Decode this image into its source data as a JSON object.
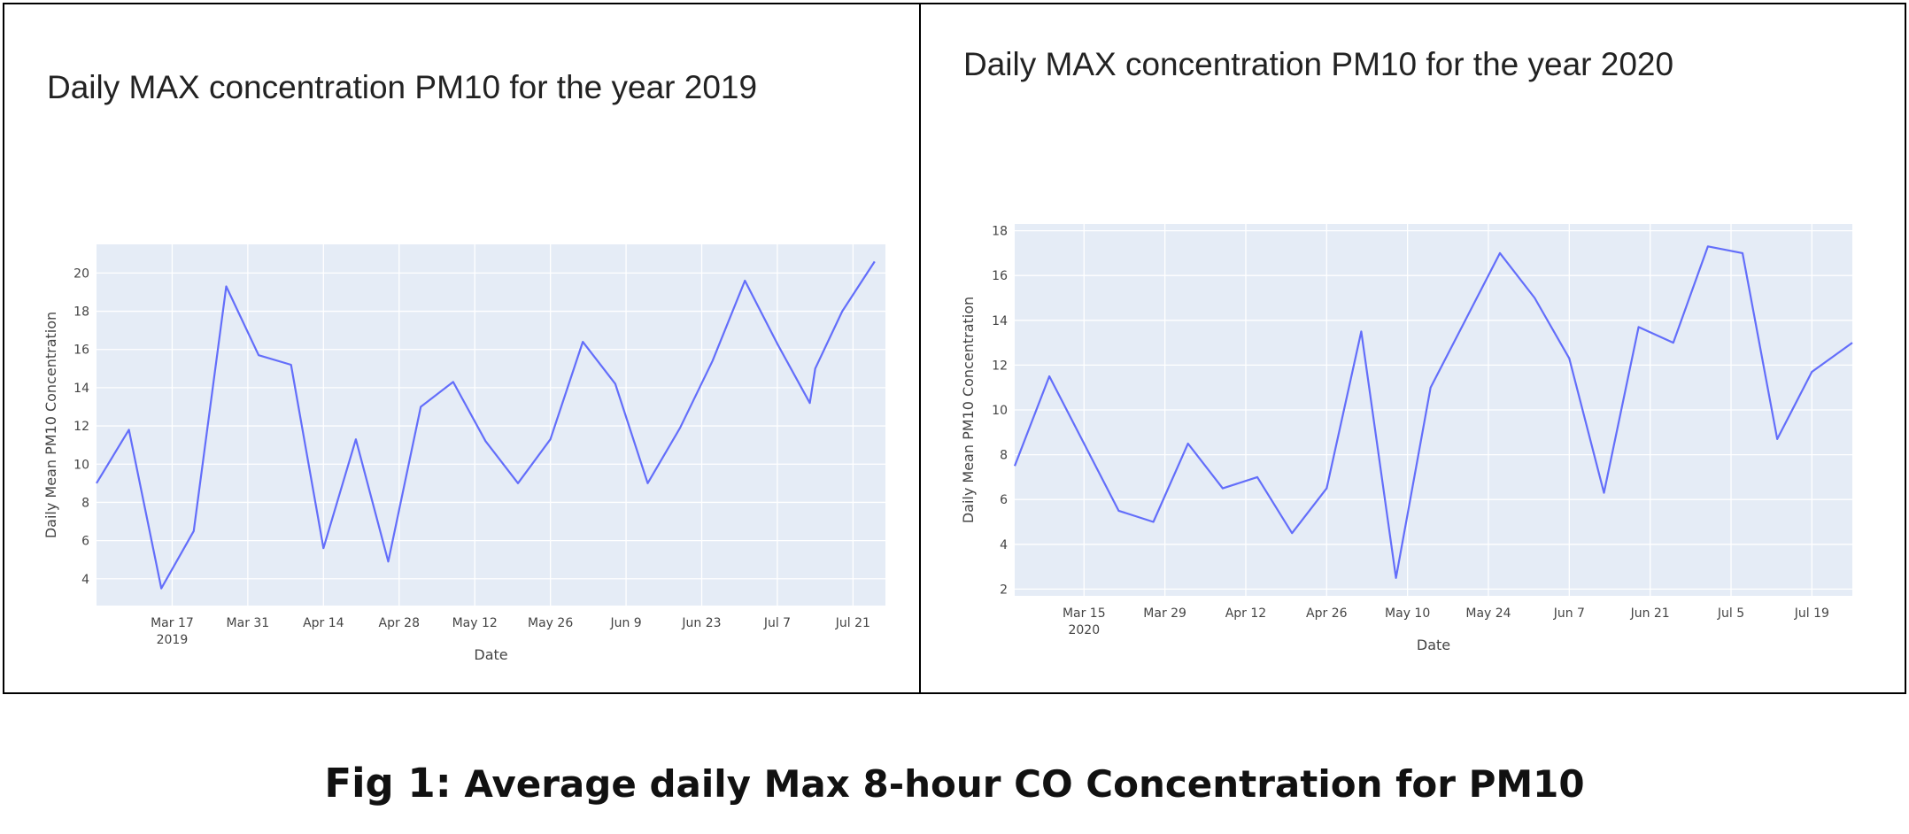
{
  "caption": {
    "prefix": "Fig 1:",
    "text": " Average daily Max 8-hour CO Concentration for PM10"
  },
  "colors": {
    "line": "#636efa",
    "plot_background": "#e5ecf6",
    "grid": "#ffffff"
  },
  "chart_data": [
    {
      "type": "line",
      "title": "Daily MAX concentration PM10 for the year 2019",
      "xlabel": "Date",
      "ylabel": "Daily Mean PM10 Concentration",
      "xlim": [
        "2019-03-03",
        "2019-07-27"
      ],
      "ylim": [
        2.6,
        21.5
      ],
      "yticks": [
        4,
        6,
        8,
        10,
        12,
        14,
        16,
        18,
        20
      ],
      "xticks": [
        {
          "date": "2019-03-17",
          "label": "Mar 17",
          "sublabel": "2019"
        },
        {
          "date": "2019-03-31",
          "label": "Mar 31"
        },
        {
          "date": "2019-04-14",
          "label": "Apr 14"
        },
        {
          "date": "2019-04-28",
          "label": "Apr 28"
        },
        {
          "date": "2019-05-12",
          "label": "May 12"
        },
        {
          "date": "2019-05-26",
          "label": "May 26"
        },
        {
          "date": "2019-06-09",
          "label": "Jun 9"
        },
        {
          "date": "2019-06-23",
          "label": "Jun 23"
        },
        {
          "date": "2019-07-07",
          "label": "Jul 7"
        },
        {
          "date": "2019-07-21",
          "label": "Jul 21"
        }
      ],
      "grid": true,
      "series": [
        {
          "x": [
            "2019-03-03",
            "2019-03-09",
            "2019-03-15",
            "2019-03-21",
            "2019-03-27",
            "2019-04-02",
            "2019-04-08",
            "2019-04-14",
            "2019-04-20",
            "2019-04-26",
            "2019-05-02",
            "2019-05-08",
            "2019-05-14",
            "2019-05-20",
            "2019-05-26",
            "2019-06-01",
            "2019-06-07",
            "2019-06-13",
            "2019-06-19",
            "2019-06-25",
            "2019-07-01",
            "2019-07-07",
            "2019-07-13",
            "2019-07-14",
            "2019-07-19",
            "2019-07-25"
          ],
          "y": [
            9.0,
            11.8,
            3.5,
            6.5,
            19.3,
            15.7,
            15.2,
            5.6,
            11.3,
            4.9,
            13.0,
            14.3,
            11.2,
            9.0,
            11.3,
            16.4,
            14.2,
            9.0,
            11.9,
            15.4,
            19.6,
            16.3,
            13.2,
            15.0,
            18.0,
            20.6
          ]
        }
      ]
    },
    {
      "type": "line",
      "title": "Daily MAX concentration PM10 for the year 2020",
      "xlabel": "Date",
      "ylabel": "Daily Mean PM10 Concentration",
      "xlim": [
        "2020-03-03",
        "2020-07-26"
      ],
      "ylim": [
        1.7,
        18.3
      ],
      "yticks": [
        2,
        4,
        6,
        8,
        10,
        12,
        14,
        16,
        18
      ],
      "xticks": [
        {
          "date": "2020-03-15",
          "label": "Mar 15",
          "sublabel": "2020"
        },
        {
          "date": "2020-03-29",
          "label": "Mar 29"
        },
        {
          "date": "2020-04-12",
          "label": "Apr 12"
        },
        {
          "date": "2020-04-26",
          "label": "Apr 26"
        },
        {
          "date": "2020-05-10",
          "label": "May 10"
        },
        {
          "date": "2020-05-24",
          "label": "May 24"
        },
        {
          "date": "2020-06-07",
          "label": "Jun 7"
        },
        {
          "date": "2020-06-21",
          "label": "Jun 21"
        },
        {
          "date": "2020-07-05",
          "label": "Jul 5"
        },
        {
          "date": "2020-07-19",
          "label": "Jul 19"
        }
      ],
      "grid": true,
      "series": [
        {
          "x": [
            "2020-03-03",
            "2020-03-09",
            "2020-03-15",
            "2020-03-21",
            "2020-03-27",
            "2020-04-02",
            "2020-04-08",
            "2020-04-14",
            "2020-04-20",
            "2020-04-26",
            "2020-05-02",
            "2020-05-08",
            "2020-05-14",
            "2020-05-20",
            "2020-05-26",
            "2020-06-01",
            "2020-06-07",
            "2020-06-13",
            "2020-06-19",
            "2020-06-25",
            "2020-07-01",
            "2020-07-07",
            "2020-07-13",
            "2020-07-19",
            "2020-07-26"
          ],
          "y": [
            7.5,
            11.5,
            8.5,
            5.5,
            5.0,
            8.5,
            6.5,
            7.0,
            4.5,
            6.5,
            13.5,
            2.5,
            11.0,
            14.0,
            17.0,
            15.0,
            12.3,
            6.3,
            13.7,
            13.0,
            17.3,
            17.0,
            8.7,
            11.7,
            13.0
          ]
        }
      ]
    }
  ]
}
